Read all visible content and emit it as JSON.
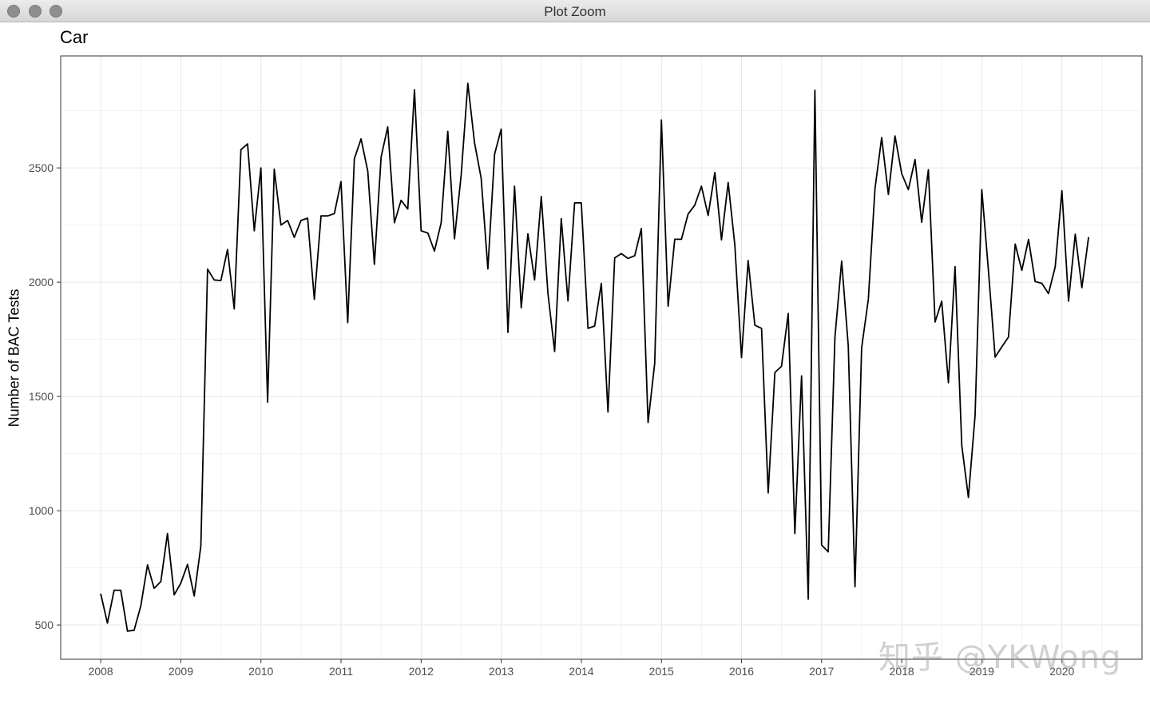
{
  "window": {
    "title": "Plot Zoom",
    "buttons": [
      "close",
      "minimize",
      "zoom"
    ]
  },
  "watermark": "知乎 @YKWong",
  "chart_data": {
    "type": "line",
    "title": "Car",
    "xlabel": "",
    "ylabel": "Number of BAC Tests",
    "xlim": [
      2007.5,
      2021.0
    ],
    "ylim": [
      350,
      2990
    ],
    "x_ticks": [
      2008,
      2009,
      2010,
      2011,
      2012,
      2013,
      2014,
      2015,
      2016,
      2017,
      2018,
      2019,
      2020
    ],
    "y_ticks": [
      500,
      1000,
      1500,
      2000,
      2500
    ],
    "grid": true,
    "line_color": "#000000",
    "series": [
      {
        "x_start": 2008.0,
        "x_step": 0.08333,
        "values": [
          637,
          508,
          652,
          652,
          473,
          477,
          583,
          763,
          660,
          690,
          900,
          632,
          683,
          765,
          627,
          845,
          2057,
          2010,
          2007,
          2143,
          1883,
          2580,
          2605,
          2225,
          2500,
          1475,
          2495,
          2250,
          2270,
          2196,
          2270,
          2280,
          1925,
          2290,
          2290,
          2300,
          2440,
          1823,
          2540,
          2627,
          2486,
          2078,
          2547,
          2680,
          2260,
          2358,
          2320,
          2842,
          2225,
          2215,
          2136,
          2260,
          2660,
          2190,
          2470,
          2870,
          2610,
          2455,
          2058,
          2560,
          2670,
          1780,
          2420,
          1888,
          2212,
          2010,
          2375,
          1952,
          1697,
          2278,
          1918,
          2347,
          2347,
          1798,
          1808,
          1995,
          1432,
          2106,
          2125,
          2104,
          2116,
          2235,
          1386,
          1645,
          2710,
          1895,
          2188,
          2188,
          2298,
          2337,
          2420,
          2292,
          2480,
          2185,
          2436,
          2164,
          1670,
          2095,
          1812,
          1798,
          1078,
          1605,
          1632,
          1863,
          900,
          1590,
          613,
          2840,
          850,
          820,
          1760,
          2092,
          1720,
          667,
          1712,
          1925,
          2408,
          2633,
          2384,
          2640,
          2475,
          2405,
          2537,
          2262,
          2492,
          1826,
          1917,
          1560,
          2068,
          1286,
          1058,
          1418,
          2405,
          2050,
          1672,
          1717,
          1760,
          2167,
          2052,
          2187,
          2003,
          1995,
          1950,
          2067,
          2400,
          1917,
          2210,
          1976,
          2197
        ]
      }
    ]
  }
}
